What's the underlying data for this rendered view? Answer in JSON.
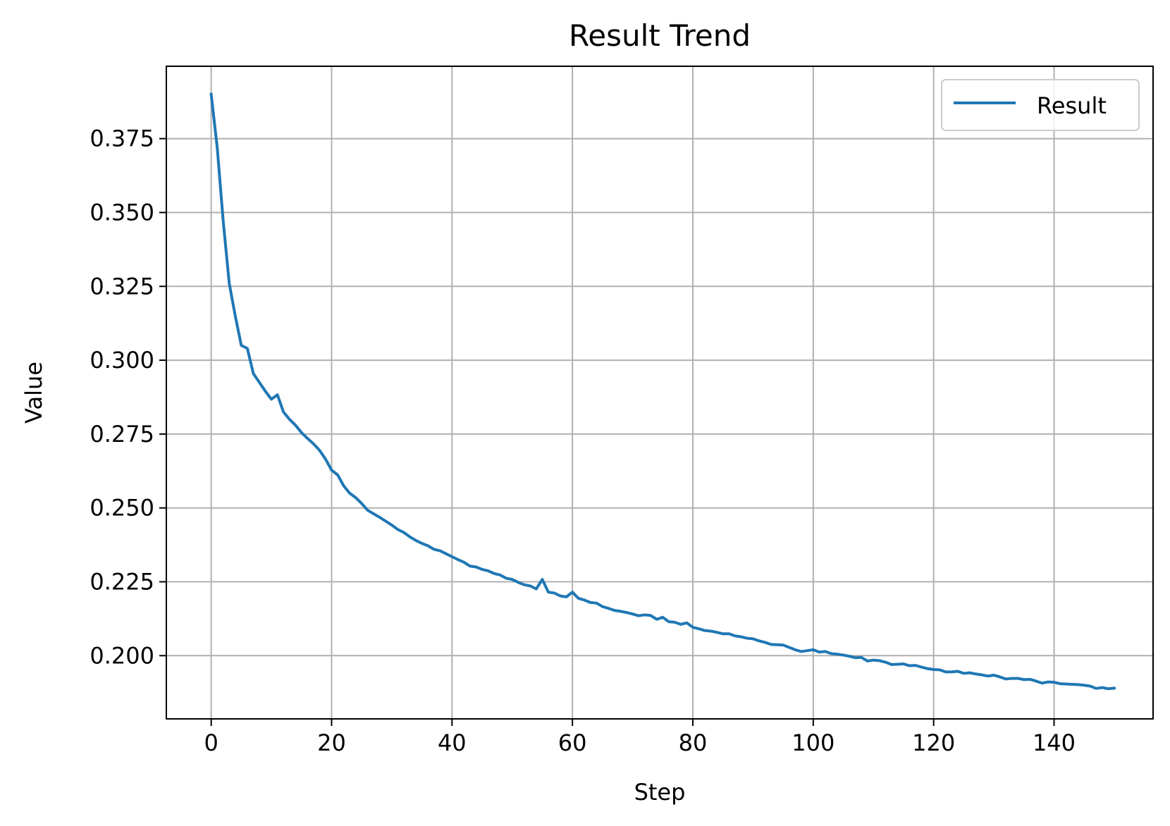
{
  "colors": {
    "series": "#1f77b4",
    "grid": "#b0b0b0",
    "axis": "#000000",
    "legend_border": "#cccccc"
  },
  "chart_data": {
    "type": "line",
    "title": "Result Trend",
    "xlabel": "Step",
    "ylabel": "Value",
    "xlim": [
      -7.45,
      156.45
    ],
    "ylim": [
      0.1786,
      0.3995
    ],
    "xticks": [
      0,
      20,
      40,
      60,
      80,
      100,
      120,
      140
    ],
    "yticks": [
      0.2,
      0.225,
      0.25,
      0.275,
      0.3,
      0.325,
      0.35,
      0.375
    ],
    "xtick_labels": [
      "0",
      "20",
      "40",
      "60",
      "80",
      "100",
      "120",
      "140"
    ],
    "ytick_labels": [
      "0.200",
      "0.225",
      "0.250",
      "0.275",
      "0.300",
      "0.325",
      "0.350",
      "0.375"
    ],
    "grid": true,
    "legend_position": "top-right",
    "series": [
      {
        "name": "Result",
        "x_start": 0,
        "x_step": 1,
        "values": [
          0.39,
          0.372,
          0.347,
          0.326,
          0.315,
          0.305,
          0.304,
          0.2955,
          0.2925,
          0.2895,
          0.2868,
          0.2883,
          0.2825,
          0.28,
          0.278,
          0.2755,
          0.2735,
          0.2717,
          0.2695,
          0.2665,
          0.2628,
          0.2612,
          0.2575,
          0.255,
          0.2535,
          0.2515,
          0.2492,
          0.248,
          0.2468,
          0.2455,
          0.2442,
          0.2427,
          0.2417,
          0.2402,
          0.239,
          0.238,
          0.2372,
          0.236,
          0.2355,
          0.2345,
          0.2335,
          0.2325,
          0.2316,
          0.2303,
          0.23,
          0.2292,
          0.2287,
          0.2278,
          0.2273,
          0.2262,
          0.2258,
          0.2248,
          0.224,
          0.2236,
          0.2226,
          0.2258,
          0.2215,
          0.2212,
          0.2202,
          0.2199,
          0.2215,
          0.2194,
          0.2188,
          0.218,
          0.2178,
          0.2166,
          0.216,
          0.2153,
          0.215,
          0.2146,
          0.2141,
          0.2135,
          0.2138,
          0.2136,
          0.2123,
          0.213,
          0.2115,
          0.2113,
          0.2106,
          0.2111,
          0.2096,
          0.2091,
          0.2085,
          0.2083,
          0.2079,
          0.2074,
          0.2074,
          0.2067,
          0.2064,
          0.2059,
          0.2057,
          0.205,
          0.2045,
          0.2038,
          0.2037,
          0.2036,
          0.2028,
          0.202,
          0.2014,
          0.2017,
          0.202,
          0.2012,
          0.2014,
          0.2007,
          0.2005,
          0.2002,
          0.1998,
          0.1993,
          0.1994,
          0.1982,
          0.1985,
          0.1983,
          0.1978,
          0.197,
          0.1971,
          0.1972,
          0.1966,
          0.1967,
          0.1961,
          0.1956,
          0.1953,
          0.1952,
          0.1945,
          0.1945,
          0.1947,
          0.194,
          0.1942,
          0.1938,
          0.1935,
          0.1931,
          0.1934,
          0.1928,
          0.1921,
          0.1923,
          0.1923,
          0.1919,
          0.192,
          0.1914,
          0.1907,
          0.1911,
          0.191,
          0.1905,
          0.1904,
          0.1903,
          0.1902,
          0.19,
          0.1897,
          0.1889,
          0.1892,
          0.1888,
          0.189
        ]
      }
    ]
  }
}
